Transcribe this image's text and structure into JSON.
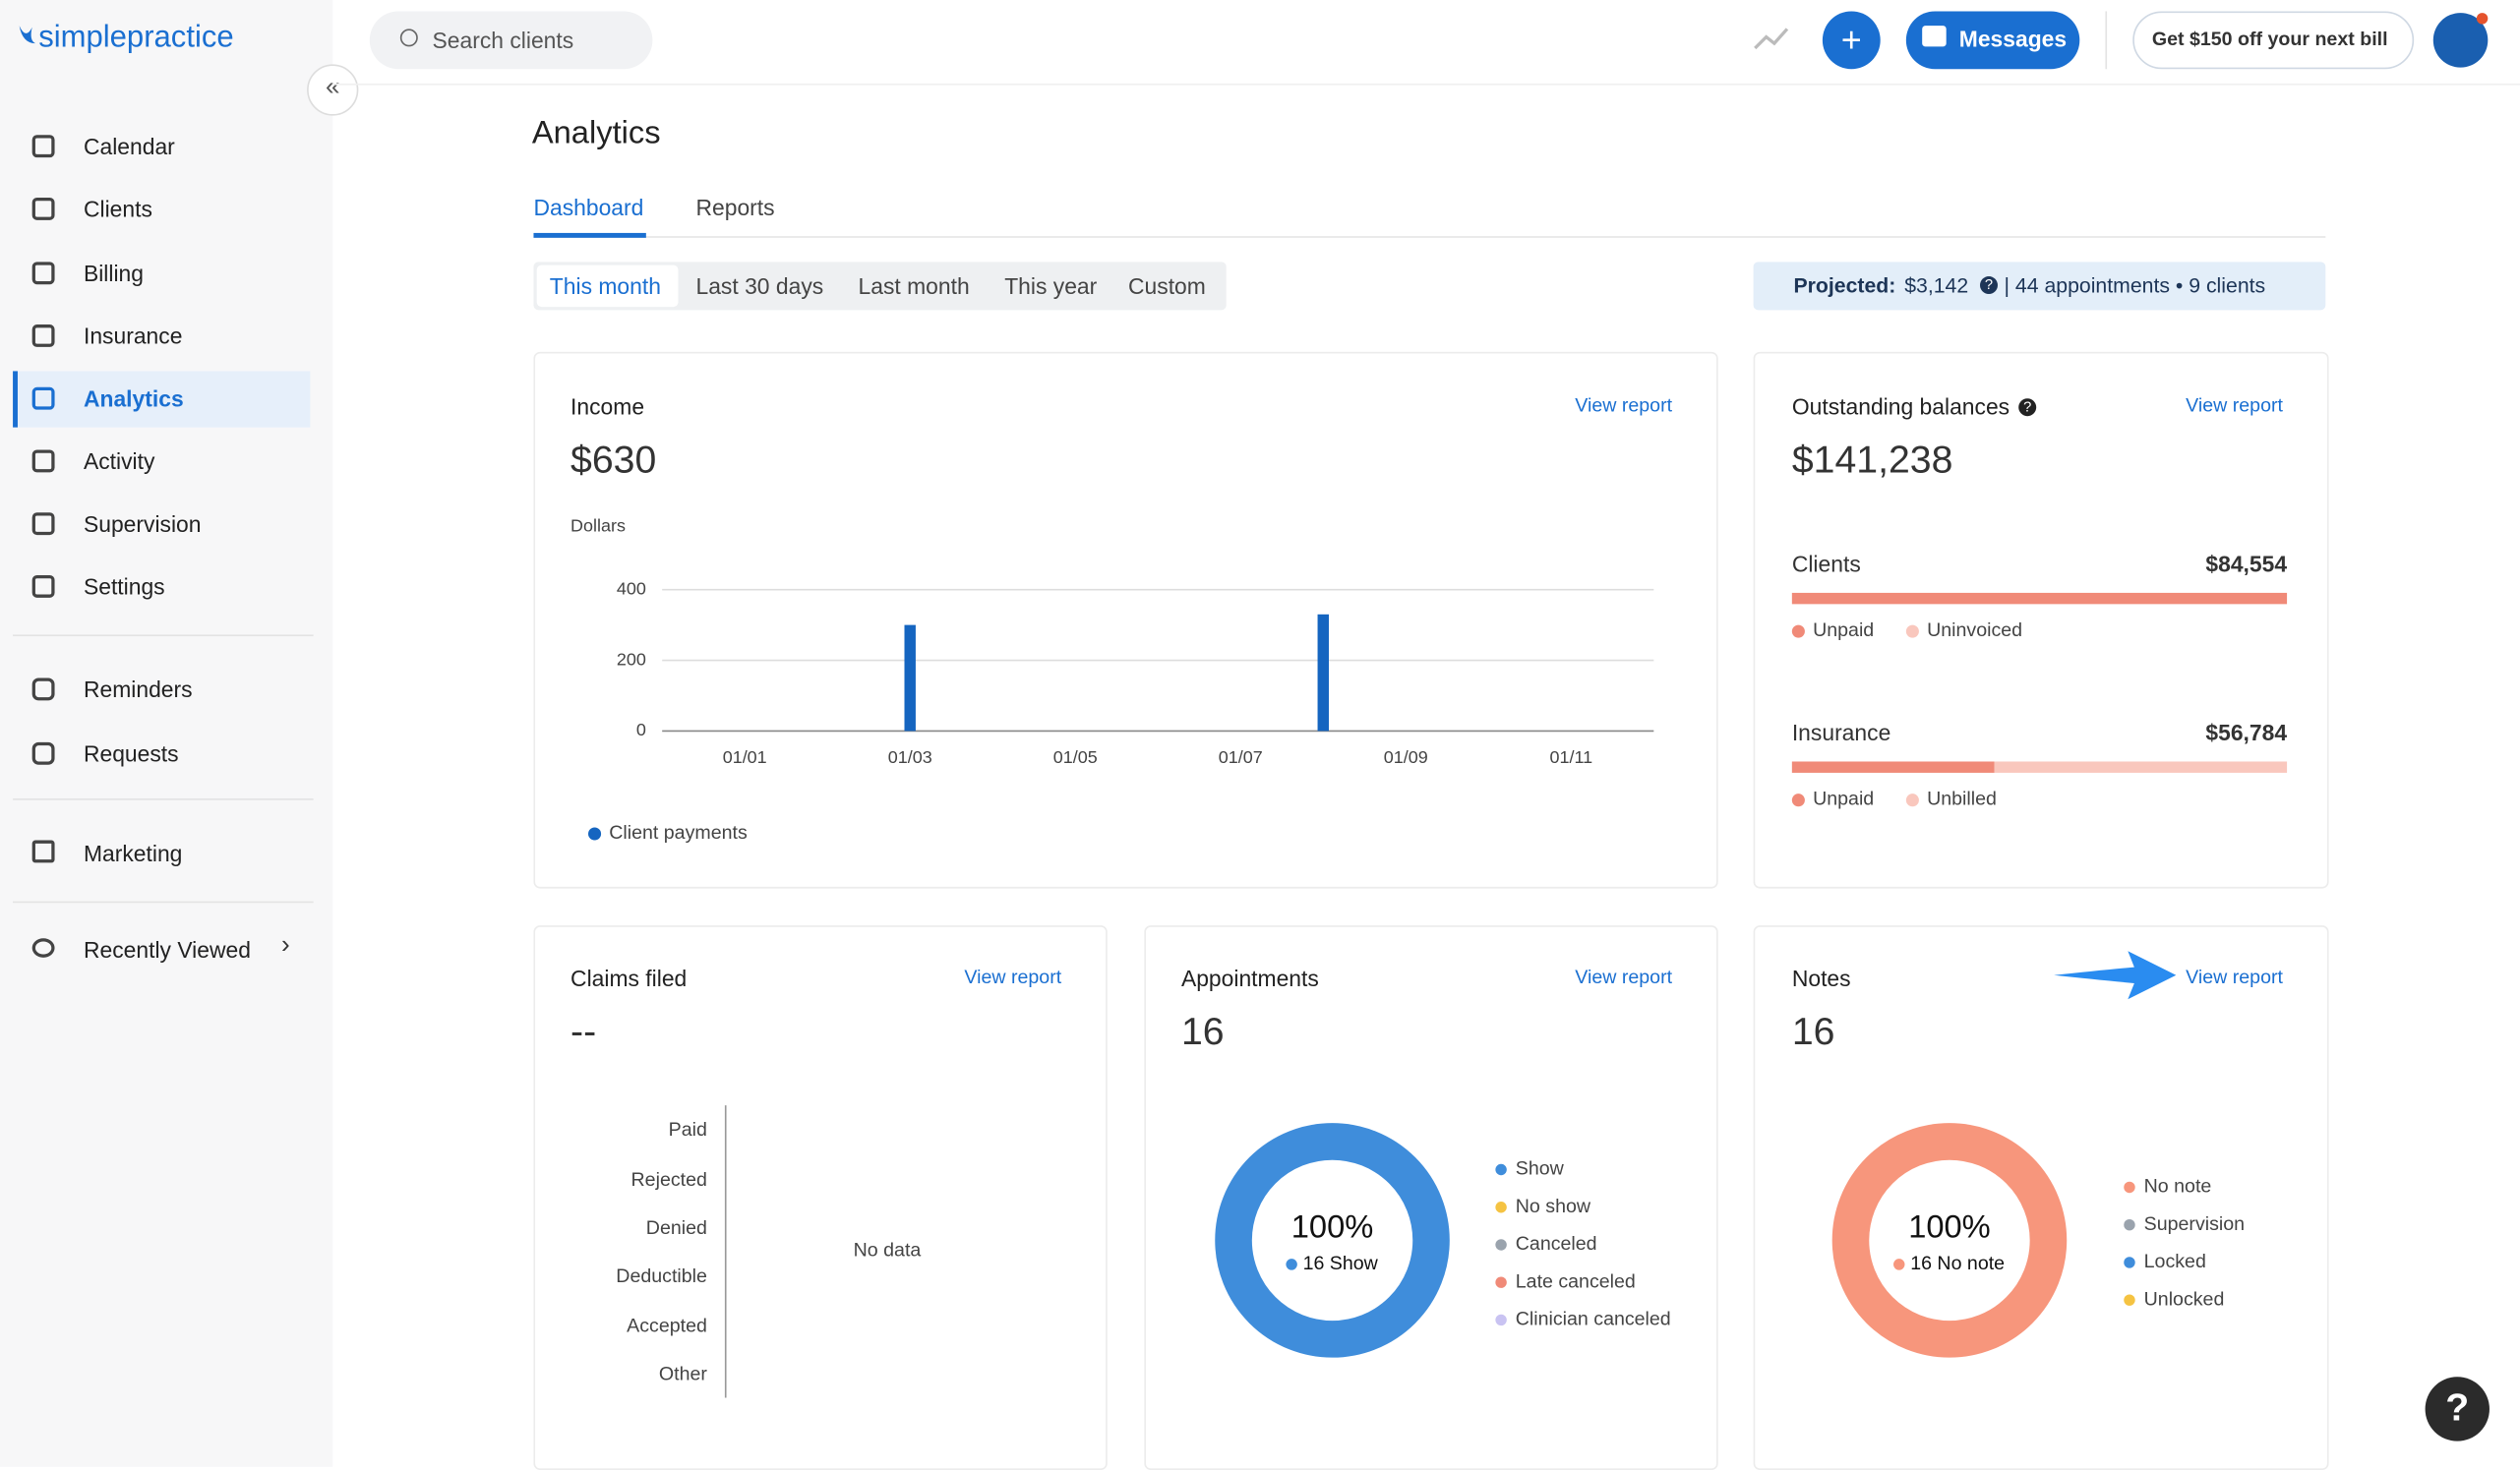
{
  "header": {
    "logo": "simplepractice",
    "search_placeholder": "Search clients",
    "messages": "Messages",
    "promo": "Get $150 off your next bill"
  },
  "sidebar": {
    "items": [
      "Calendar",
      "Clients",
      "Billing",
      "Insurance",
      "Analytics",
      "Activity",
      "Supervision",
      "Settings"
    ],
    "items2": [
      "Reminders",
      "Requests"
    ],
    "marketing": "Marketing",
    "recently_viewed": "Recently Viewed"
  },
  "page": {
    "title": "Analytics",
    "tabs": [
      "Dashboard",
      "Reports"
    ],
    "ranges": [
      "This month",
      "Last 30 days",
      "Last month",
      "This year",
      "Custom"
    ],
    "projected_label": "Projected:",
    "projected_value": "$3,142",
    "projected_detail": "| 44 appointments • 9 clients"
  },
  "cards": {
    "income": {
      "title": "Income",
      "total": "$630",
      "view": "View report"
    },
    "outstanding": {
      "title": "Outstanding balances",
      "total": "$141,238",
      "view": "View report",
      "groups": [
        {
          "name": "Clients",
          "amount": "$84,554",
          "segments": [
            {
              "name": "Unpaid",
              "value": 84554,
              "color": "#f08a78"
            },
            {
              "name": "Uninvoiced",
              "value": 0,
              "color": "#f9c7bd"
            }
          ]
        },
        {
          "name": "Insurance",
          "amount": "$56,784",
          "segments": [
            {
              "name": "Unpaid",
              "value": 23300,
              "color": "#f08a78"
            },
            {
              "name": "Unbilled",
              "value": 33484,
              "color": "#f9c7bd"
            }
          ]
        }
      ]
    },
    "claims": {
      "title": "Claims filed",
      "total": "--",
      "view": "View report",
      "rows": [
        "Paid",
        "Rejected",
        "Denied",
        "Deductible",
        "Accepted",
        "Other"
      ],
      "empty": "No data"
    },
    "appointments": {
      "title": "Appointments",
      "total": "16",
      "view": "View report"
    },
    "notes": {
      "title": "Notes",
      "total": "16",
      "view": "View report"
    }
  },
  "chart_data": [
    {
      "type": "bar",
      "y_label": "Dollars",
      "categories": [
        null,
        "01/01",
        null,
        "01/03",
        null,
        "01/05",
        null,
        "01/07",
        null,
        "01/09",
        null,
        "01/11",
        null
      ],
      "series": [
        {
          "name": "Client payments",
          "color": "#1565c0",
          "values": [
            0,
            0,
            0,
            300,
            0,
            0,
            0,
            0,
            330,
            0,
            0,
            0,
            0
          ]
        }
      ],
      "ylim": [
        0,
        400
      ],
      "yticks": [
        0,
        200,
        400
      ],
      "grid": true
    },
    {
      "type": "donut",
      "center_label": "100%",
      "center_sublabel": "16 Show",
      "categories": [
        "Show",
        "No show",
        "Canceled",
        "Late canceled",
        "Clinician canceled"
      ],
      "values": [
        16,
        0,
        0,
        0,
        0
      ],
      "colors": [
        "#3f8ddb",
        "#f5c342",
        "#9aa3ad",
        "#f08a78",
        "#c9c3f2"
      ]
    },
    {
      "type": "donut",
      "center_label": "100%",
      "center_sublabel": "16 No note",
      "categories": [
        "No note",
        "Supervision",
        "Locked",
        "Unlocked"
      ],
      "values": [
        16,
        0,
        0,
        0
      ],
      "colors": [
        "#f7967c",
        "#9aa3ad",
        "#3f8ddb",
        "#f5c342"
      ]
    }
  ]
}
